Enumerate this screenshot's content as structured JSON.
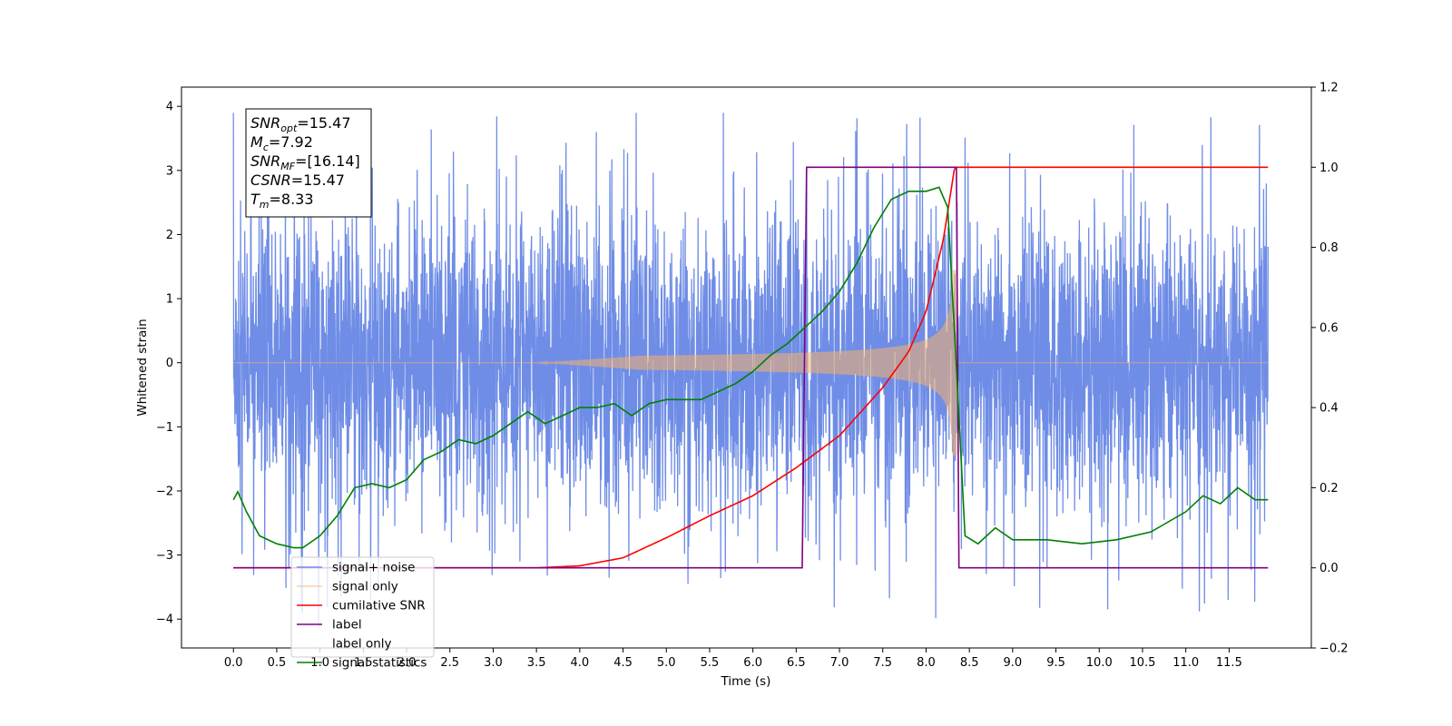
{
  "chart_data": {
    "type": "line",
    "xlabel": "Time (s)",
    "ylabel": "Whitened strain",
    "xlim": [
      -0.6,
      12.45
    ],
    "ylim": [
      -4.45,
      4.3
    ],
    "y2lim": [
      -0.2,
      1.2
    ],
    "x_ticks": [
      "0.0",
      "0.5",
      "1.0",
      "1.5",
      "2.0",
      "2.5",
      "3.0",
      "3.5",
      "4.0",
      "4.5",
      "5.0",
      "5.5",
      "6.0",
      "6.5",
      "7.0",
      "7.5",
      "8.0",
      "8.5",
      "9.0",
      "9.5",
      "10.0",
      "10.5",
      "11.0",
      "11.5"
    ],
    "y_ticks": [
      "4",
      "3",
      "2",
      "1",
      "0",
      "−1",
      "−2",
      "−3",
      "−4"
    ],
    "y2_ticks": [
      "1.2",
      "1.0",
      "0.8",
      "0.6",
      "0.4",
      "0.2",
      "0.0",
      "−0.2"
    ],
    "annotation": [
      {
        "main": "SNR",
        "sub": "opt",
        "rest": "=15.47"
      },
      {
        "main": "M",
        "sub": "c",
        "rest": "=7.92"
      },
      {
        "main": "SNR",
        "sub": "MF",
        "rest": "=[16.14]"
      },
      {
        "main": "CSNR",
        "sub": "",
        "rest": "=15.47"
      },
      {
        "main": "T",
        "sub": "m",
        "rest": "=8.33"
      }
    ],
    "legend_position": "lower-left",
    "series": [
      {
        "name": "signal+ noise",
        "color": "#6f8de6",
        "axis": "left",
        "kind": "noisy strain, std ≈ 1.1, spikes to ±3.9"
      },
      {
        "name": "signal only",
        "color": "#f6b26b",
        "axis": "left",
        "kind": "chirp envelope growing from ~4.0 s, peak amplitude ≈ 1.4 at 8.33 s, ends 8.35 s"
      },
      {
        "name": "cumilative SNR",
        "color": "#ff0000",
        "axis": "right",
        "x": [
          0.0,
          3.5,
          4.0,
          4.5,
          5.0,
          5.5,
          6.0,
          6.5,
          7.0,
          7.5,
          7.8,
          8.0,
          8.2,
          8.33,
          11.95
        ],
        "values": [
          0.0,
          0.0,
          0.005,
          0.025,
          0.075,
          0.13,
          0.18,
          0.25,
          0.33,
          0.45,
          0.54,
          0.64,
          0.82,
          1.0,
          1.0
        ]
      },
      {
        "name": "label",
        "color": "#800080",
        "axis": "right",
        "x": [
          0.0,
          6.57,
          6.62,
          8.35,
          8.38,
          11.95
        ],
        "values": [
          0.0,
          0.0,
          1.0,
          1.0,
          0.0,
          0.0
        ]
      },
      {
        "name": "label only",
        "color": "#ffffff",
        "axis": "right",
        "x": [],
        "values": []
      },
      {
        "name": "signal statistics",
        "color": "#008000",
        "axis": "right",
        "x": [
          0.0,
          0.05,
          0.15,
          0.3,
          0.5,
          0.7,
          0.8,
          1.0,
          1.2,
          1.4,
          1.6,
          1.8,
          2.0,
          2.2,
          2.4,
          2.6,
          2.8,
          3.0,
          3.2,
          3.4,
          3.6,
          3.8,
          4.0,
          4.2,
          4.4,
          4.6,
          4.8,
          5.0,
          5.2,
          5.4,
          5.6,
          5.8,
          6.0,
          6.2,
          6.4,
          6.6,
          6.8,
          7.0,
          7.2,
          7.4,
          7.6,
          7.8,
          8.0,
          8.15,
          8.25,
          8.35,
          8.45,
          8.6,
          8.8,
          9.0,
          9.4,
          9.8,
          10.2,
          10.6,
          11.0,
          11.2,
          11.4,
          11.6,
          11.8,
          11.95
        ],
        "values": [
          0.17,
          0.19,
          0.14,
          0.08,
          0.06,
          0.05,
          0.05,
          0.08,
          0.13,
          0.2,
          0.21,
          0.2,
          0.22,
          0.27,
          0.29,
          0.32,
          0.31,
          0.33,
          0.36,
          0.39,
          0.36,
          0.38,
          0.4,
          0.4,
          0.41,
          0.38,
          0.41,
          0.42,
          0.42,
          0.42,
          0.44,
          0.46,
          0.49,
          0.53,
          0.56,
          0.6,
          0.64,
          0.69,
          0.76,
          0.85,
          0.92,
          0.94,
          0.94,
          0.95,
          0.9,
          0.5,
          0.08,
          0.06,
          0.1,
          0.07,
          0.07,
          0.06,
          0.07,
          0.09,
          0.14,
          0.18,
          0.16,
          0.2,
          0.17,
          0.17
        ]
      }
    ]
  }
}
